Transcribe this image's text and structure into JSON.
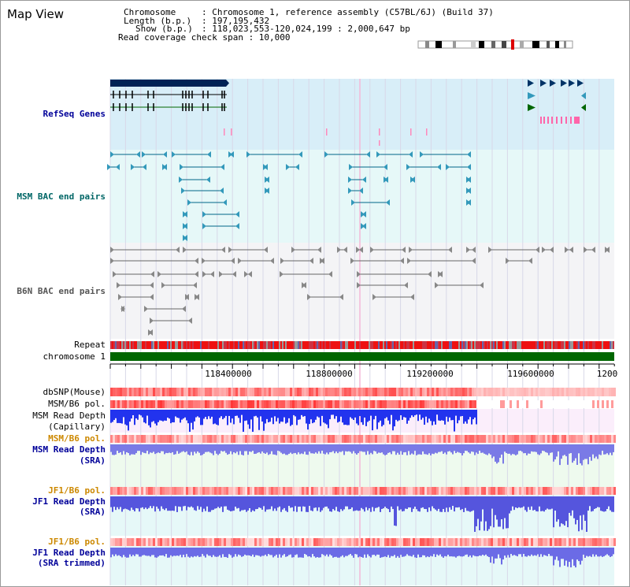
{
  "title": "Map View",
  "info": {
    "chromosome_key": "Chromosome",
    "chromosome_val": ": Chromosome 1, reference assembly (C57BL/6J) (Build 37)",
    "length_key": "Length (b.p.)",
    "length_val": ": 197,195,432",
    "show_key": "Show (b.p.)",
    "show_val": ": 118,023,553-120,024,199 : 2,000,647 bp",
    "read_span": "Read coverage check span : 10,000"
  },
  "tracks": {
    "refseq": "RefSeq Genes",
    "msm_bac": "MSM BAC end pairs",
    "b6n_bac": "B6N BAC end pairs",
    "repeat": "Repeat",
    "chromosome": "chromosome 1",
    "dbsnp": "dbSNP(Mouse)",
    "msm_b6_pol_1": "MSM/B6 pol.",
    "msm_read_depth_cap_1": "MSM Read Depth",
    "msm_read_depth_cap_2": "(Capillary)",
    "msm_b6_pol_2": "MSM/B6 pol.",
    "msm_read_depth_sra_1": "MSM Read Depth",
    "msm_read_depth_sra_2": "(SRA)",
    "jf1_b6_pol_1": "JF1/B6 pol.",
    "jf1_read_depth_sra_1": "JF1 Read Depth",
    "jf1_read_depth_sra_2": "(SRA)",
    "jf1_b6_pol_2": "JF1/B6 pol.",
    "jf1_read_depth_trim_1": "JF1 Read Depth",
    "jf1_read_depth_trim_2": "(SRA trimmed)"
  },
  "axis_ticks": [
    "118400000",
    "118800000",
    "119200000",
    "119600000",
    "1200"
  ],
  "colors": {
    "refseq_bg": "#d8eef8",
    "msm_bg": "#e6f8f8",
    "b6n_bg": "#f4f4f6",
    "chromosome_bar": "#006600",
    "repeat_red": "#ee1111",
    "depth_blue": "#2233ee",
    "pol_red": "#ee3333"
  }
}
